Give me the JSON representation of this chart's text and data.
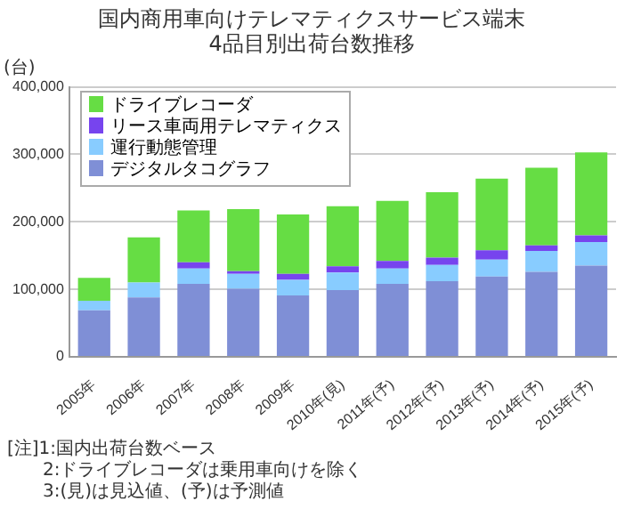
{
  "chart_data": {
    "type": "bar",
    "stacked": true,
    "title": "国内商用車向けテレマティクスサービス端末\n4品目別出荷台数推移",
    "ylabel": "(台)",
    "categories": [
      "2005年",
      "2006年",
      "2007年",
      "2008年",
      "2009年",
      "2010年(見)",
      "2011年(予)",
      "2012年(予)",
      "2013年(予)",
      "2014年(予)",
      "2015年(予)"
    ],
    "series": [
      {
        "name": "デジタルタコグラフ",
        "color": "#7f8fd6",
        "values": [
          69000,
          88000,
          108000,
          101000,
          91000,
          99000,
          108000,
          112000,
          119000,
          126000,
          135000
        ]
      },
      {
        "name": "運行動態管理",
        "color": "#88ccff",
        "values": [
          14000,
          22000,
          23000,
          22000,
          23000,
          26000,
          23000,
          24000,
          25000,
          31000,
          35000
        ]
      },
      {
        "name": "リース車両用テレマティクス",
        "color": "#7744ee",
        "values": [
          0,
          0,
          9000,
          4000,
          9000,
          9000,
          11000,
          11000,
          14000,
          8000,
          10000
        ]
      },
      {
        "name": "ドライブレコーダ",
        "color": "#66dd44",
        "values": [
          34000,
          67000,
          77000,
          92000,
          88000,
          89000,
          89000,
          97000,
          106000,
          115000,
          123000
        ]
      }
    ],
    "ylim": [
      0,
      400000
    ],
    "yticks": [
      {
        "value": 0,
        "label": "0"
      },
      {
        "value": 100000,
        "label": "100,000"
      },
      {
        "value": 200000,
        "label": "200,000"
      },
      {
        "value": 300000,
        "label": "300,000"
      },
      {
        "value": 400000,
        "label": "400,000"
      }
    ],
    "grid": "y",
    "legend": "top left",
    "annotations": [
      "[注]1:国内出荷台数ベース",
      "2:ドライブレコーダは乗用車向けを除く",
      "3:(見)は見込値、(予)は予測値"
    ]
  }
}
